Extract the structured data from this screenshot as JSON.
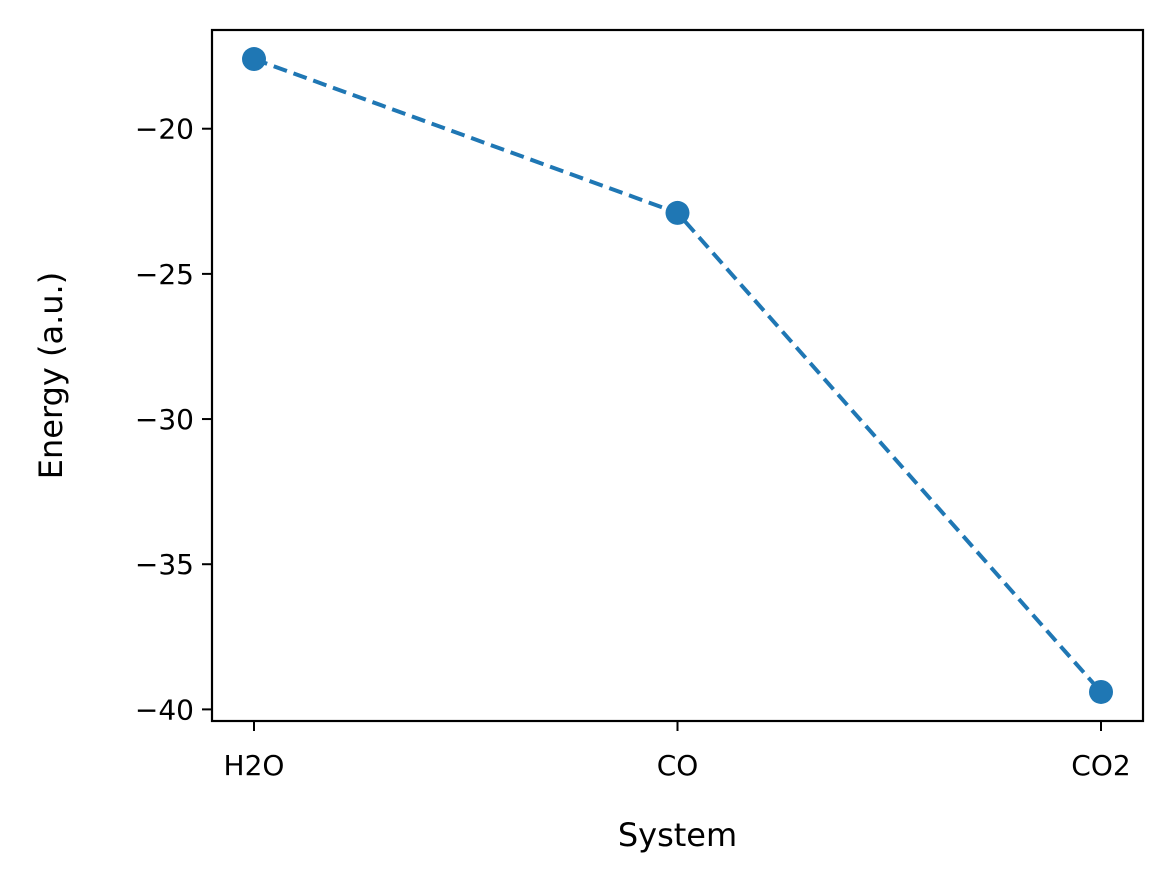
{
  "chart_data": {
    "type": "line",
    "title": "",
    "xlabel": "System",
    "ylabel": "Energy (a.u.)",
    "categories": [
      "H2O",
      "CO",
      "CO2"
    ],
    "series": [
      {
        "values": [
          -17.6,
          -22.9,
          -39.4
        ],
        "color": "#1f77b4",
        "line_style": "dashed",
        "marker": "circle"
      }
    ],
    "ylim": [
      -40.4,
      -16.6
    ],
    "yticks": [
      -20,
      -25,
      -30,
      -35,
      -40
    ],
    "ytick_labels": [
      "−20",
      "−25",
      "−30",
      "−35",
      "−40"
    ],
    "grid": false,
    "legend": "none"
  }
}
